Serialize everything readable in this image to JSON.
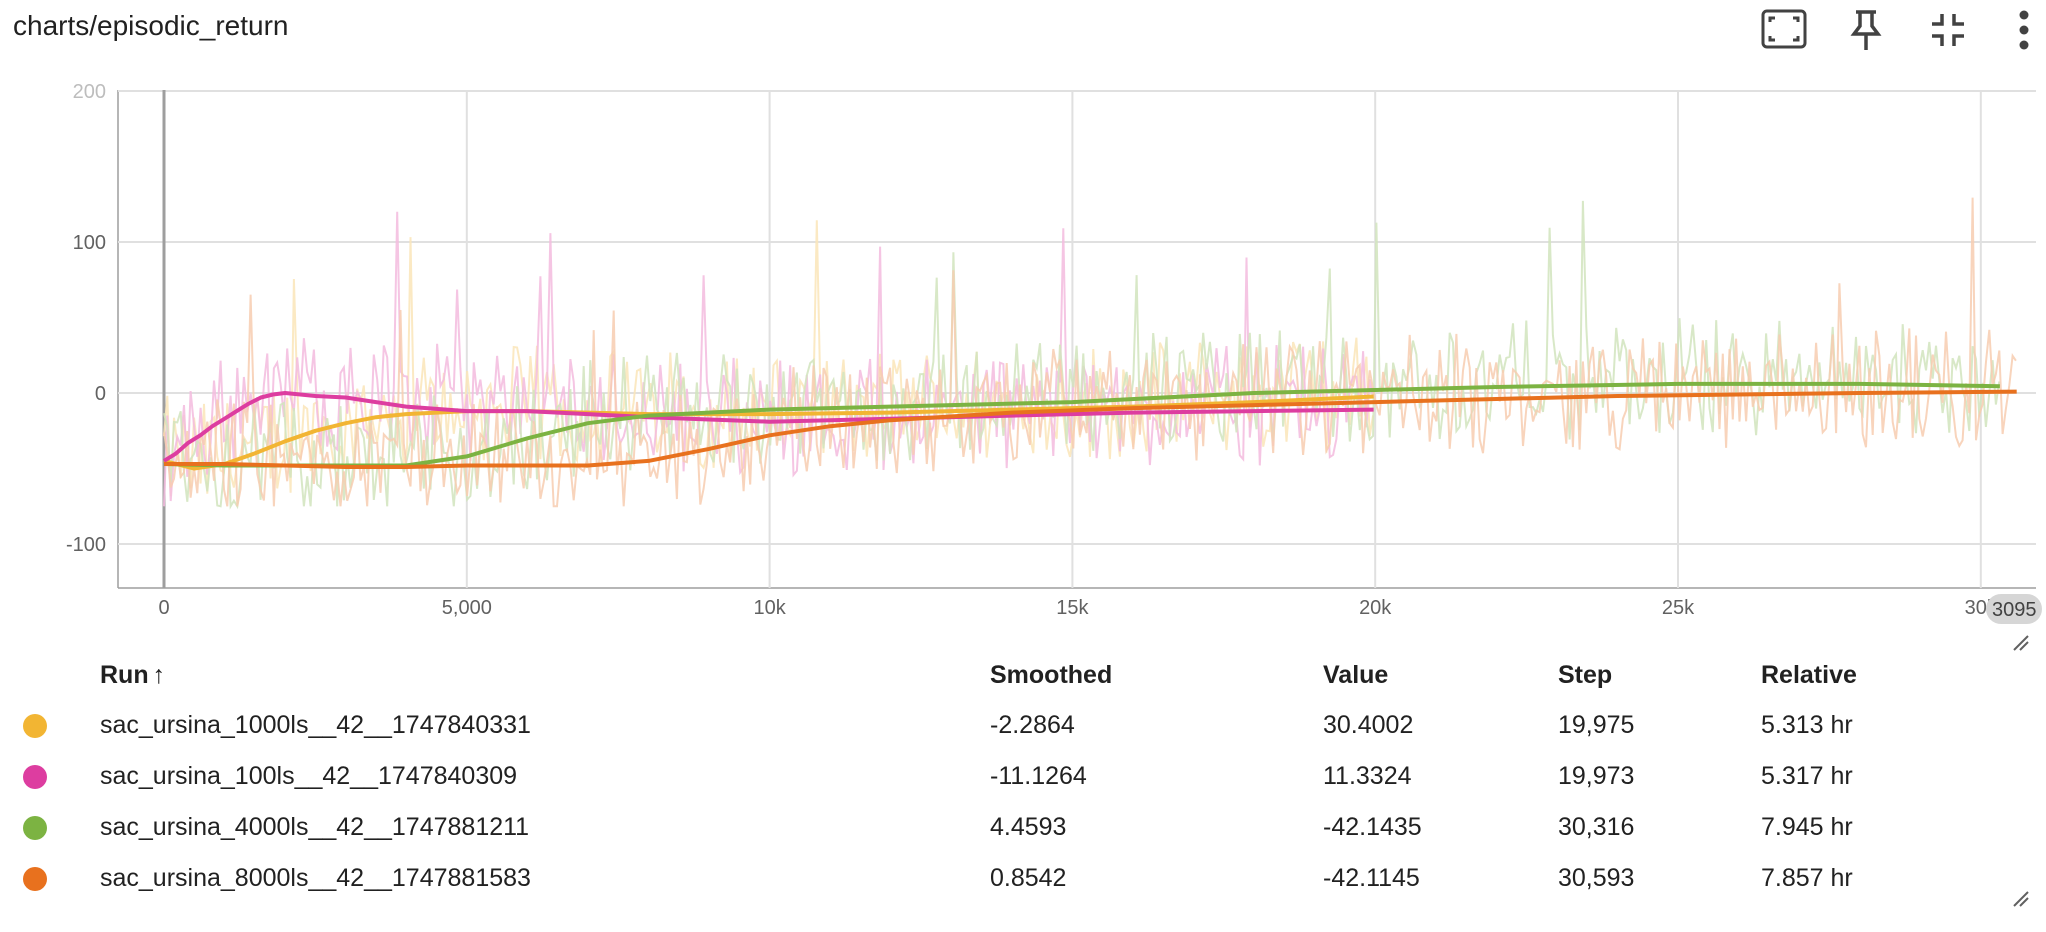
{
  "card": {
    "title": "charts/episodic_return",
    "toolbar": [
      {
        "name": "fit-domain-button",
        "icon": "fit-screen-icon"
      },
      {
        "name": "pin-button",
        "icon": "pin-icon"
      },
      {
        "name": "collapse-button",
        "icon": "collapse-icon"
      },
      {
        "name": "more-menu-button",
        "icon": "more-vert-icon"
      }
    ]
  },
  "chart_data": {
    "type": "line",
    "title": "charts/episodic_return",
    "xlabel": "",
    "ylabel": "",
    "xlim": [
      -1500,
      31000
    ],
    "ylim": [
      -130,
      205
    ],
    "grid": true,
    "x_ticks": [
      {
        "value": 0,
        "label": "0"
      },
      {
        "value": 5000,
        "label": "5,000"
      },
      {
        "value": 10000,
        "label": "10k"
      },
      {
        "value": 15000,
        "label": "15k"
      },
      {
        "value": 20000,
        "label": "20k"
      },
      {
        "value": 25000,
        "label": "25k"
      },
      {
        "value": 30000,
        "label": "30k"
      }
    ],
    "y_ticks": [
      {
        "value": 200,
        "label": "200",
        "faint": true
      },
      {
        "value": 100,
        "label": "100",
        "faint": false
      },
      {
        "value": 0,
        "label": "0",
        "faint": false
      },
      {
        "value": -100,
        "label": "-100",
        "faint": false
      }
    ],
    "x_hover_badge": "3095",
    "series": [
      {
        "name": "sac_ursina_1000ls__42__1747840331",
        "color": "#f2b533",
        "x": [
          0,
          500,
          1000,
          1500,
          2000,
          2500,
          3000,
          3500,
          4000,
          4500,
          5000,
          6000,
          7000,
          8000,
          10000,
          12000,
          14000,
          16000,
          18000,
          19975
        ],
        "y": [
          -45,
          -50,
          -47,
          -40,
          -32,
          -25,
          -20,
          -16,
          -14,
          -13,
          -12,
          -12,
          -13,
          -14,
          -14,
          -13,
          -11,
          -9,
          -6,
          -2.3
        ]
      },
      {
        "name": "sac_ursina_100ls__42__1747840309",
        "color": "#dd3da0",
        "x": [
          0,
          200,
          400,
          600,
          800,
          1000,
          1200,
          1400,
          1600,
          1800,
          2000,
          2500,
          3000,
          3500,
          4000,
          5000,
          6000,
          7000,
          8000,
          10000,
          12000,
          14000,
          16000,
          18000,
          19973
        ],
        "y": [
          -45,
          -40,
          -33,
          -28,
          -22,
          -17,
          -12,
          -7,
          -3,
          -1,
          0,
          -2,
          -3,
          -6,
          -9,
          -12,
          -12,
          -14,
          -16,
          -19,
          -17,
          -15,
          -13,
          -12,
          -11
        ]
      },
      {
        "name": "sac_ursina_4000ls__42__1747881211",
        "color": "#7cb342",
        "x": [
          0,
          1000,
          2000,
          3000,
          4000,
          5000,
          6000,
          7000,
          8000,
          10000,
          12000,
          15000,
          18000,
          20000,
          22000,
          25000,
          28000,
          30316
        ],
        "y": [
          -47,
          -48,
          -48,
          -48,
          -48,
          -42,
          -30,
          -20,
          -15,
          -11,
          -9,
          -6,
          0,
          2,
          4,
          6,
          6,
          4.5
        ]
      },
      {
        "name": "sac_ursina_8000ls__42__1747881583",
        "color": "#e8711e",
        "x": [
          0,
          1000,
          2000,
          3000,
          4000,
          5000,
          6000,
          7000,
          8000,
          9000,
          10000,
          11000,
          12000,
          14000,
          16000,
          18000,
          20000,
          22000,
          24000,
          26000,
          28000,
          30593
        ],
        "y": [
          -47,
          -47,
          -48,
          -49,
          -49,
          -48,
          -48,
          -48,
          -45,
          -37,
          -28,
          -22,
          -18,
          -13,
          -10,
          -8,
          -6,
          -4,
          -2,
          -1,
          0,
          0.9
        ]
      }
    ]
  },
  "table": {
    "headers": {
      "run": "Run",
      "sort_arrow": "↑",
      "smoothed": "Smoothed",
      "value": "Value",
      "step": "Step",
      "relative": "Relative"
    },
    "rows": [
      {
        "color": "#f2b533",
        "run": "sac_ursina_1000ls__42__1747840331",
        "smoothed": "-2.2864",
        "value": "30.4002",
        "step": "19,975",
        "relative": "5.313 hr"
      },
      {
        "color": "#dd3da0",
        "run": "sac_ursina_100ls__42__1747840309",
        "smoothed": "-11.1264",
        "value": "11.3324",
        "step": "19,973",
        "relative": "5.317 hr"
      },
      {
        "color": "#7cb342",
        "run": "sac_ursina_4000ls__42__1747881211",
        "smoothed": "4.4593",
        "value": "-42.1435",
        "step": "30,316",
        "relative": "7.945 hr"
      },
      {
        "color": "#e8711e",
        "run": "sac_ursina_8000ls__42__1747881583",
        "smoothed": "0.8542",
        "value": "-42.1145",
        "step": "30,593",
        "relative": "7.857 hr"
      }
    ]
  }
}
